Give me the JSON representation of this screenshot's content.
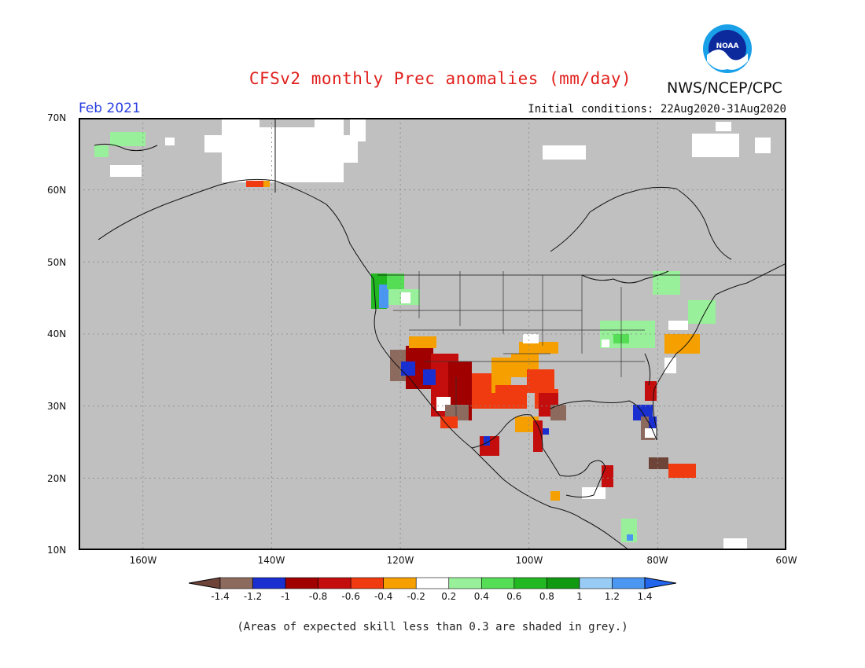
{
  "title": "CFSv2 monthly Prec anomalies (mm/day)",
  "organization": "NWS/NCEP/CPC",
  "logo_text": "NOAA",
  "target_month": "Feb 2021",
  "initial_conditions": "Initial conditions: 22Aug2020-31Aug2020",
  "footnote": "(Areas of expected skill less than 0.3 are shaded in grey.)",
  "map": {
    "lon_range": [
      -170,
      -60
    ],
    "lat_range": [
      10,
      70
    ],
    "lat_labels": [
      "70N",
      "60N",
      "50N",
      "40N",
      "30N",
      "20N",
      "10N"
    ],
    "lon_labels": [
      "160W",
      "140W",
      "120W",
      "100W",
      "80W",
      "60W"
    ],
    "ocean_land_color": "#c0c0c0",
    "grid": "dotted"
  },
  "colorbar": {
    "labels": [
      "-1.4",
      "-1.2",
      "-1",
      "-0.8",
      "-0.6",
      "-0.4",
      "-0.2",
      "0.2",
      "0.4",
      "0.6",
      "0.8",
      "1",
      "1.2",
      "1.4"
    ],
    "colors": [
      "#6e4438",
      "#8c6a5e",
      "#1a2fd0",
      "#a00000",
      "#c40e0e",
      "#f03a10",
      "#f5a000",
      "#ffffff",
      "#99f09a",
      "#55dd55",
      "#22b822",
      "#119911",
      "#99ccf5",
      "#4a96f0",
      "#2266ee"
    ]
  },
  "anomaly_regions": [
    {
      "name": "northern-alaska-neutral",
      "color": "#ffffff"
    },
    {
      "name": "pacific-northwest-wet",
      "color": "#22b822"
    },
    {
      "name": "southwest-dry",
      "color": "#a00000"
    },
    {
      "name": "southern-plains-dry",
      "color": "#f5a000"
    },
    {
      "name": "ohio-valley-wet",
      "color": "#99f09a"
    },
    {
      "name": "northeast-wet",
      "color": "#99f09a"
    },
    {
      "name": "mid-atlantic-dry",
      "color": "#f5a000"
    },
    {
      "name": "florida-mixed",
      "color": "#1a2fd0"
    },
    {
      "name": "caribbean-dry",
      "color": "#f03a10"
    }
  ]
}
